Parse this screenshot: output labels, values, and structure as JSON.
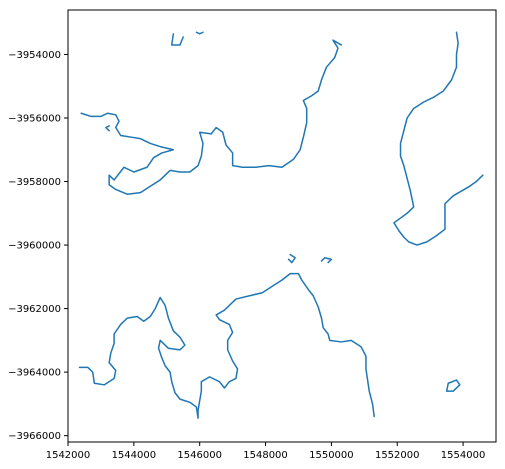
{
  "chart_data": {
    "type": "line",
    "title": "",
    "xlabel": "",
    "ylabel": "",
    "grid": false,
    "xlim": [
      1542000,
      1555000
    ],
    "ylim": [
      -3966200,
      -3952600
    ],
    "x_ticks": [
      1542000,
      1544000,
      1546000,
      1548000,
      1550000,
      1552000,
      1554000
    ],
    "x_tick_labels": [
      "1542000",
      "1544000",
      "1546000",
      "1548000",
      "1550000",
      "1552000",
      "1554000"
    ],
    "y_ticks": [
      -3954000,
      -3956000,
      -3958000,
      -3960000,
      -3962000,
      -3964000,
      -3966000
    ],
    "y_tick_labels": [
      "−3954000",
      "−3956000",
      "−3958000",
      "−3960000",
      "−3962000",
      "−3964000",
      "−3966000"
    ],
    "line_color": "#1f77b4",
    "series": [
      {
        "points": [
          [
            1542400,
            -3955850
          ],
          [
            1542700,
            -3955950
          ],
          [
            1543000,
            -3955950
          ],
          [
            1543200,
            -3955850
          ],
          [
            1543450,
            -3955900
          ],
          [
            1543550,
            -3956100
          ],
          [
            1543450,
            -3956300
          ],
          [
            1543600,
            -3956550
          ],
          [
            1543900,
            -3956600
          ],
          [
            1544200,
            -3956650
          ],
          [
            1544500,
            -3956800
          ],
          [
            1544800,
            -3956900
          ],
          [
            1545200,
            -3957000
          ],
          [
            1544850,
            -3957100
          ],
          [
            1544600,
            -3957250
          ],
          [
            1544400,
            -3957550
          ],
          [
            1544000,
            -3957700
          ],
          [
            1543700,
            -3957550
          ],
          [
            1543400,
            -3957950
          ],
          [
            1543250,
            -3957800
          ],
          [
            1543250,
            -3958100
          ],
          [
            1543450,
            -3958250
          ],
          [
            1543800,
            -3958400
          ],
          [
            1544200,
            -3958350
          ],
          [
            1544500,
            -3958150
          ],
          [
            1544800,
            -3957950
          ],
          [
            1545100,
            -3957650
          ],
          [
            1545400,
            -3957700
          ],
          [
            1545700,
            -3957700
          ],
          [
            1545950,
            -3957500
          ],
          [
            1546050,
            -3957200
          ],
          [
            1546100,
            -3956800
          ],
          [
            1546000,
            -3956450
          ],
          [
            1546350,
            -3956500
          ],
          [
            1546500,
            -3956300
          ],
          [
            1546700,
            -3956450
          ],
          [
            1546800,
            -3956850
          ],
          [
            1547000,
            -3957100
          ],
          [
            1547000,
            -3957500
          ],
          [
            1547300,
            -3957550
          ],
          [
            1547700,
            -3957550
          ],
          [
            1548100,
            -3957500
          ],
          [
            1548500,
            -3957550
          ],
          [
            1548850,
            -3957300
          ],
          [
            1549050,
            -3957000
          ],
          [
            1549150,
            -3956600
          ],
          [
            1549250,
            -3956150
          ],
          [
            1549250,
            -3955700
          ],
          [
            1549150,
            -3955450
          ],
          [
            1549400,
            -3955300
          ],
          [
            1549600,
            -3955150
          ],
          [
            1549700,
            -3954800
          ],
          [
            1549850,
            -3954400
          ],
          [
            1550100,
            -3954100
          ],
          [
            1550200,
            -3953800
          ],
          [
            1550050,
            -3953550
          ],
          [
            1550300,
            -3953700
          ]
        ]
      },
      {
        "points": [
          [
            1545200,
            -3953350
          ],
          [
            1545150,
            -3953700
          ],
          [
            1545400,
            -3953700
          ],
          [
            1545500,
            -3953450
          ]
        ]
      },
      {
        "points": [
          [
            1545900,
            -3953300
          ],
          [
            1546000,
            -3953350
          ],
          [
            1546100,
            -3953300
          ]
        ]
      },
      {
        "points": [
          [
            1543250,
            -3956250
          ],
          [
            1543150,
            -3956300
          ],
          [
            1543250,
            -3956400
          ]
        ]
      },
      {
        "points": [
          [
            1553800,
            -3953300
          ],
          [
            1553850,
            -3953650
          ],
          [
            1553800,
            -3954000
          ],
          [
            1553800,
            -3954400
          ],
          [
            1553650,
            -3954800
          ],
          [
            1553400,
            -3955150
          ],
          [
            1553100,
            -3955350
          ],
          [
            1552800,
            -3955500
          ],
          [
            1552500,
            -3955700
          ],
          [
            1552300,
            -3956000
          ],
          [
            1552200,
            -3956400
          ],
          [
            1552100,
            -3956800
          ],
          [
            1552100,
            -3957200
          ],
          [
            1552200,
            -3957500
          ],
          [
            1552300,
            -3957900
          ],
          [
            1552400,
            -3958300
          ],
          [
            1552500,
            -3958800
          ],
          [
            1552300,
            -3959000
          ],
          [
            1552100,
            -3959150
          ],
          [
            1551900,
            -3959300
          ],
          [
            1552050,
            -3959550
          ],
          [
            1552200,
            -3959750
          ],
          [
            1552350,
            -3959900
          ],
          [
            1552600,
            -3960000
          ],
          [
            1552900,
            -3959900
          ],
          [
            1553200,
            -3959700
          ],
          [
            1553450,
            -3959500
          ],
          [
            1553450,
            -3959100
          ],
          [
            1553450,
            -3958700
          ],
          [
            1553700,
            -3958450
          ],
          [
            1553950,
            -3958300
          ],
          [
            1554200,
            -3958150
          ],
          [
            1554400,
            -3958000
          ],
          [
            1554600,
            -3957800
          ]
        ]
      },
      {
        "points": [
          [
            1542350,
            -3963850
          ],
          [
            1542600,
            -3963850
          ],
          [
            1542750,
            -3964000
          ],
          [
            1542800,
            -3964350
          ],
          [
            1543100,
            -3964400
          ],
          [
            1543400,
            -3964200
          ],
          [
            1543450,
            -3963950
          ],
          [
            1543250,
            -3963700
          ],
          [
            1543300,
            -3963400
          ],
          [
            1543400,
            -3963100
          ],
          [
            1543400,
            -3962800
          ],
          [
            1543600,
            -3962500
          ],
          [
            1543800,
            -3962300
          ],
          [
            1544100,
            -3962250
          ],
          [
            1544300,
            -3962400
          ],
          [
            1544500,
            -3962250
          ],
          [
            1544650,
            -3962000
          ],
          [
            1544800,
            -3961650
          ],
          [
            1544950,
            -3961900
          ],
          [
            1545050,
            -3962300
          ],
          [
            1545200,
            -3962700
          ],
          [
            1545400,
            -3962900
          ],
          [
            1545550,
            -3963150
          ],
          [
            1545400,
            -3963300
          ],
          [
            1545050,
            -3963250
          ],
          [
            1544800,
            -3963000
          ],
          [
            1544750,
            -3963250
          ],
          [
            1544850,
            -3963550
          ],
          [
            1544950,
            -3963800
          ],
          [
            1545100,
            -3964000
          ],
          [
            1545150,
            -3964300
          ],
          [
            1545250,
            -3964650
          ],
          [
            1545400,
            -3964850
          ],
          [
            1545700,
            -3964950
          ],
          [
            1545900,
            -3965100
          ],
          [
            1545950,
            -3965450
          ],
          [
            1545950,
            -3965200
          ],
          [
            1546000,
            -3964900
          ],
          [
            1546050,
            -3964600
          ],
          [
            1546050,
            -3964300
          ],
          [
            1546300,
            -3964150
          ],
          [
            1546600,
            -3964300
          ],
          [
            1546750,
            -3964500
          ],
          [
            1546900,
            -3964300
          ],
          [
            1547100,
            -3964200
          ],
          [
            1547150,
            -3963900
          ],
          [
            1547000,
            -3963650
          ],
          [
            1546850,
            -3963300
          ],
          [
            1546850,
            -3963000
          ],
          [
            1547000,
            -3962750
          ],
          [
            1546900,
            -3962500
          ],
          [
            1546600,
            -3962350
          ],
          [
            1546500,
            -3962200
          ],
          [
            1546750,
            -3962050
          ],
          [
            1547100,
            -3961700
          ],
          [
            1547500,
            -3961600
          ],
          [
            1547900,
            -3961500
          ],
          [
            1548200,
            -3961300
          ],
          [
            1548500,
            -3961100
          ],
          [
            1548750,
            -3960900
          ],
          [
            1549000,
            -3960900
          ],
          [
            1549100,
            -3961100
          ],
          [
            1549300,
            -3961400
          ],
          [
            1549450,
            -3961600
          ],
          [
            1549600,
            -3961950
          ],
          [
            1549700,
            -3962300
          ],
          [
            1549750,
            -3962600
          ],
          [
            1549900,
            -3962800
          ],
          [
            1549950,
            -3963000
          ],
          [
            1550300,
            -3963050
          ],
          [
            1550600,
            -3963000
          ],
          [
            1550900,
            -3963200
          ],
          [
            1551050,
            -3963500
          ],
          [
            1551050,
            -3963900
          ],
          [
            1551100,
            -3964250
          ],
          [
            1551150,
            -3964600
          ],
          [
            1551250,
            -3965000
          ],
          [
            1551300,
            -3965400
          ]
        ]
      },
      {
        "points": [
          [
            1548700,
            -3960450
          ],
          [
            1548800,
            -3960550
          ],
          [
            1548900,
            -3960400
          ],
          [
            1548750,
            -3960300
          ]
        ]
      },
      {
        "points": [
          [
            1549700,
            -3960500
          ],
          [
            1549800,
            -3960400
          ],
          [
            1550000,
            -3960450
          ],
          [
            1549900,
            -3960550
          ]
        ]
      },
      {
        "points": [
          [
            1553500,
            -3964600
          ],
          [
            1553550,
            -3964350
          ],
          [
            1553800,
            -3964250
          ],
          [
            1553900,
            -3964400
          ],
          [
            1553700,
            -3964600
          ],
          [
            1553500,
            -3964600
          ]
        ]
      }
    ]
  }
}
